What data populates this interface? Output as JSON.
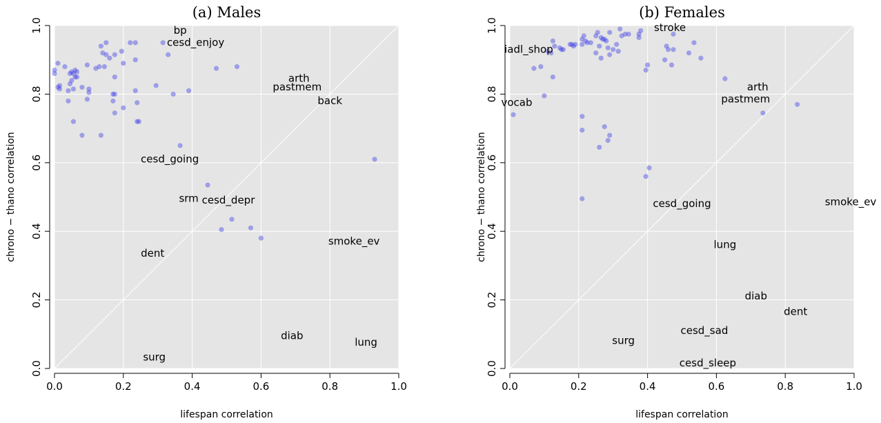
{
  "chart_data": [
    {
      "type": "scatter",
      "title": "(a) Males",
      "xlabel": "lifespan correlation",
      "ylabel": "chrono − thano correlation",
      "xlim": [
        0,
        1
      ],
      "ylim": [
        0,
        1
      ],
      "xticks": [
        "0.0",
        "0.2",
        "0.4",
        "0.6",
        "0.8",
        "1.0"
      ],
      "yticks": [
        "0.0",
        "0.2",
        "0.4",
        "0.6",
        "0.8",
        "1.0"
      ],
      "grid": true,
      "reference_line": "y = x",
      "points": [
        {
          "x": 0.0,
          "y": 0.87
        },
        {
          "x": 0.0,
          "y": 0.86
        },
        {
          "x": 0.01,
          "y": 0.89
        },
        {
          "x": 0.01,
          "y": 0.82
        },
        {
          "x": 0.015,
          "y": 0.815
        },
        {
          "x": 0.015,
          "y": 0.825
        },
        {
          "x": 0.03,
          "y": 0.88
        },
        {
          "x": 0.04,
          "y": 0.81
        },
        {
          "x": 0.04,
          "y": 0.78
        },
        {
          "x": 0.045,
          "y": 0.86
        },
        {
          "x": 0.045,
          "y": 0.83
        },
        {
          "x": 0.05,
          "y": 0.84
        },
        {
          "x": 0.05,
          "y": 0.865
        },
        {
          "x": 0.055,
          "y": 0.86
        },
        {
          "x": 0.06,
          "y": 0.87
        },
        {
          "x": 0.06,
          "y": 0.85
        },
        {
          "x": 0.055,
          "y": 0.815
        },
        {
          "x": 0.055,
          "y": 0.72
        },
        {
          "x": 0.065,
          "y": 0.865
        },
        {
          "x": 0.065,
          "y": 0.85
        },
        {
          "x": 0.08,
          "y": 0.82
        },
        {
          "x": 0.08,
          "y": 0.68
        },
        {
          "x": 0.095,
          "y": 0.785
        },
        {
          "x": 0.095,
          "y": 0.885
        },
        {
          "x": 0.1,
          "y": 0.815
        },
        {
          "x": 0.1,
          "y": 0.805
        },
        {
          "x": 0.12,
          "y": 0.875
        },
        {
          "x": 0.13,
          "y": 0.88
        },
        {
          "x": 0.135,
          "y": 0.94
        },
        {
          "x": 0.14,
          "y": 0.92
        },
        {
          "x": 0.135,
          "y": 0.68
        },
        {
          "x": 0.145,
          "y": 0.88
        },
        {
          "x": 0.15,
          "y": 0.915
        },
        {
          "x": 0.15,
          "y": 0.95
        },
        {
          "x": 0.16,
          "y": 0.905
        },
        {
          "x": 0.17,
          "y": 0.78
        },
        {
          "x": 0.17,
          "y": 0.8
        },
        {
          "x": 0.175,
          "y": 0.915
        },
        {
          "x": 0.175,
          "y": 0.8
        },
        {
          "x": 0.175,
          "y": 0.745
        },
        {
          "x": 0.175,
          "y": 0.85
        },
        {
          "x": 0.195,
          "y": 0.925
        },
        {
          "x": 0.2,
          "y": 0.89
        },
        {
          "x": 0.2,
          "y": 0.76
        },
        {
          "x": 0.22,
          "y": 0.95
        },
        {
          "x": 0.235,
          "y": 0.95
        },
        {
          "x": 0.235,
          "y": 0.9
        },
        {
          "x": 0.235,
          "y": 0.81
        },
        {
          "x": 0.24,
          "y": 0.775
        },
        {
          "x": 0.24,
          "y": 0.72
        },
        {
          "x": 0.245,
          "y": 0.72
        },
        {
          "x": 0.295,
          "y": 0.825
        },
        {
          "x": 0.315,
          "y": 0.95
        },
        {
          "x": 0.33,
          "y": 0.915
        },
        {
          "x": 0.345,
          "y": 0.8
        },
        {
          "x": 0.365,
          "y": 0.65
        },
        {
          "x": 0.39,
          "y": 0.81
        },
        {
          "x": 0.445,
          "y": 0.535
        },
        {
          "x": 0.47,
          "y": 0.875
        },
        {
          "x": 0.485,
          "y": 0.405
        },
        {
          "x": 0.515,
          "y": 0.435
        },
        {
          "x": 0.53,
          "y": 0.88
        },
        {
          "x": 0.57,
          "y": 0.41
        },
        {
          "x": 0.6,
          "y": 0.38
        },
        {
          "x": 0.93,
          "y": 0.61
        }
      ],
      "labels": [
        {
          "text": "bp",
          "x": 0.365,
          "y": 0.985
        },
        {
          "text": "cesd_enjoy",
          "x": 0.41,
          "y": 0.95
        },
        {
          "text": "arth",
          "x": 0.71,
          "y": 0.845
        },
        {
          "text": "pastmem",
          "x": 0.705,
          "y": 0.82
        },
        {
          "text": "back",
          "x": 0.8,
          "y": 0.78
        },
        {
          "text": "cesd_going",
          "x": 0.335,
          "y": 0.61
        },
        {
          "text": "srm",
          "x": 0.39,
          "y": 0.495
        },
        {
          "text": "cesd_depr",
          "x": 0.505,
          "y": 0.49
        },
        {
          "text": "smoke_ev",
          "x": 0.87,
          "y": 0.37
        },
        {
          "text": "dent",
          "x": 0.285,
          "y": 0.335
        },
        {
          "text": "diab",
          "x": 0.69,
          "y": 0.095
        },
        {
          "text": "lung",
          "x": 0.905,
          "y": 0.075
        },
        {
          "text": "surg",
          "x": 0.29,
          "y": 0.032
        }
      ]
    },
    {
      "type": "scatter",
      "title": "(b) Females",
      "xlabel": "lifespan correlation",
      "ylabel": "",
      "xlim": [
        0,
        1
      ],
      "ylim": [
        0,
        1
      ],
      "xticks": [
        "0.0",
        "0.2",
        "0.4",
        "0.6",
        "0.8",
        "1.0"
      ],
      "yticks": [
        "0.0",
        "0.2",
        "0.4",
        "0.6",
        "0.8",
        "1.0"
      ],
      "grid": true,
      "reference_line": "y = x",
      "points": [
        {
          "x": 0.01,
          "y": 0.74
        },
        {
          "x": 0.07,
          "y": 0.875
        },
        {
          "x": 0.09,
          "y": 0.88
        },
        {
          "x": 0.1,
          "y": 0.795
        },
        {
          "x": 0.11,
          "y": 0.925
        },
        {
          "x": 0.12,
          "y": 0.92
        },
        {
          "x": 0.125,
          "y": 0.85
        },
        {
          "x": 0.125,
          "y": 0.955
        },
        {
          "x": 0.13,
          "y": 0.94
        },
        {
          "x": 0.145,
          "y": 0.935
        },
        {
          "x": 0.15,
          "y": 0.93
        },
        {
          "x": 0.155,
          "y": 0.93
        },
        {
          "x": 0.175,
          "y": 0.945
        },
        {
          "x": 0.18,
          "y": 0.945
        },
        {
          "x": 0.185,
          "y": 0.94
        },
        {
          "x": 0.19,
          "y": 0.945
        },
        {
          "x": 0.21,
          "y": 0.945
        },
        {
          "x": 0.21,
          "y": 0.96
        },
        {
          "x": 0.215,
          "y": 0.97
        },
        {
          "x": 0.22,
          "y": 0.955
        },
        {
          "x": 0.225,
          "y": 0.95
        },
        {
          "x": 0.235,
          "y": 0.95
        },
        {
          "x": 0.25,
          "y": 0.97
        },
        {
          "x": 0.255,
          "y": 0.98
        },
        {
          "x": 0.26,
          "y": 0.94
        },
        {
          "x": 0.265,
          "y": 0.965
        },
        {
          "x": 0.27,
          "y": 0.96
        },
        {
          "x": 0.275,
          "y": 0.96
        },
        {
          "x": 0.28,
          "y": 0.955
        },
        {
          "x": 0.29,
          "y": 0.98
        },
        {
          "x": 0.25,
          "y": 0.92
        },
        {
          "x": 0.265,
          "y": 0.905
        },
        {
          "x": 0.285,
          "y": 0.935
        },
        {
          "x": 0.29,
          "y": 0.915
        },
        {
          "x": 0.3,
          "y": 0.93
        },
        {
          "x": 0.31,
          "y": 0.945
        },
        {
          "x": 0.315,
          "y": 0.925
        },
        {
          "x": 0.32,
          "y": 0.99
        },
        {
          "x": 0.325,
          "y": 0.97
        },
        {
          "x": 0.335,
          "y": 0.975
        },
        {
          "x": 0.345,
          "y": 0.975
        },
        {
          "x": 0.375,
          "y": 0.965
        },
        {
          "x": 0.375,
          "y": 0.975
        },
        {
          "x": 0.38,
          "y": 0.985
        },
        {
          "x": 0.395,
          "y": 0.87
        },
        {
          "x": 0.4,
          "y": 0.885
        },
        {
          "x": 0.21,
          "y": 0.735
        },
        {
          "x": 0.21,
          "y": 0.695
        },
        {
          "x": 0.275,
          "y": 0.705
        },
        {
          "x": 0.29,
          "y": 0.68
        },
        {
          "x": 0.285,
          "y": 0.665
        },
        {
          "x": 0.26,
          "y": 0.645
        },
        {
          "x": 0.21,
          "y": 0.495
        },
        {
          "x": 0.395,
          "y": 0.56
        },
        {
          "x": 0.405,
          "y": 0.585
        },
        {
          "x": 0.45,
          "y": 0.9
        },
        {
          "x": 0.455,
          "y": 0.94
        },
        {
          "x": 0.46,
          "y": 0.93
        },
        {
          "x": 0.47,
          "y": 0.885
        },
        {
          "x": 0.475,
          "y": 0.93
        },
        {
          "x": 0.475,
          "y": 0.975
        },
        {
          "x": 0.52,
          "y": 0.92
        },
        {
          "x": 0.535,
          "y": 0.95
        },
        {
          "x": 0.555,
          "y": 0.905
        },
        {
          "x": 0.625,
          "y": 0.845
        },
        {
          "x": 0.735,
          "y": 0.745
        },
        {
          "x": 0.835,
          "y": 0.77
        }
      ],
      "labels": [
        {
          "text": "stroke",
          "x": 0.465,
          "y": 0.993
        },
        {
          "text": "iadl_shop",
          "x": 0.055,
          "y": 0.93
        },
        {
          "text": "arth",
          "x": 0.72,
          "y": 0.82
        },
        {
          "text": "pastmem",
          "x": 0.685,
          "y": 0.785
        },
        {
          "text": "vocab",
          "x": 0.02,
          "y": 0.775
        },
        {
          "text": "cesd_going",
          "x": 0.5,
          "y": 0.48
        },
        {
          "text": "smoke_ev",
          "x": 0.99,
          "y": 0.485
        },
        {
          "text": "lung",
          "x": 0.625,
          "y": 0.36
        },
        {
          "text": "diab",
          "x": 0.715,
          "y": 0.21
        },
        {
          "text": "dent",
          "x": 0.83,
          "y": 0.165
        },
        {
          "text": "cesd_sad",
          "x": 0.565,
          "y": 0.11
        },
        {
          "text": "surg",
          "x": 0.33,
          "y": 0.08
        },
        {
          "text": "cesd_sleep",
          "x": 0.575,
          "y": 0.015
        }
      ]
    }
  ]
}
